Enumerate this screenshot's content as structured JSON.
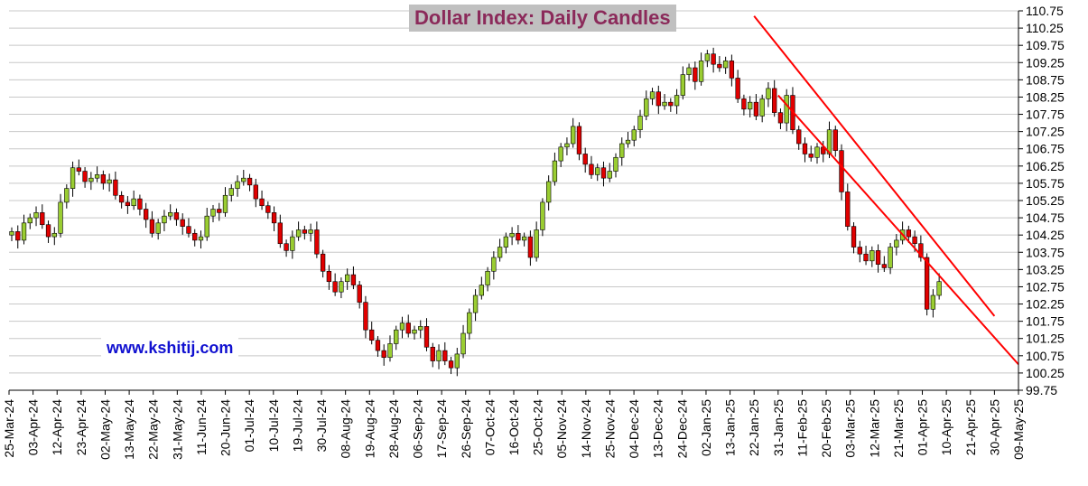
{
  "chart_data": {
    "type": "candlestick",
    "title": "Dollar Index: Daily Candles",
    "watermark": "www.kshitij.com",
    "ylim": [
      99.75,
      110.75
    ],
    "y_ticks": [
      "110.75",
      "110.25",
      "109.75",
      "109.25",
      "108.75",
      "108.25",
      "107.75",
      "107.25",
      "106.75",
      "106.25",
      "105.75",
      "105.25",
      "104.75",
      "104.25",
      "103.75",
      "103.25",
      "102.75",
      "102.25",
      "101.75",
      "101.25",
      "100.75",
      "100.25",
      "99.75"
    ],
    "x_labels": [
      "25-Mar-24",
      "03-Apr-24",
      "12-Apr-24",
      "23-Apr-24",
      "02-May-24",
      "13-May-24",
      "22-May-24",
      "31-May-24",
      "11-Jun-24",
      "20-Jun-24",
      "01-Jul-24",
      "10-Jul-24",
      "19-Jul-24",
      "30-Jul-24",
      "08-Aug-24",
      "19-Aug-24",
      "28-Aug-24",
      "06-Sep-24",
      "17-Sep-24",
      "26-Sep-24",
      "07-Oct-24",
      "16-Oct-24",
      "25-Oct-24",
      "05-Nov-24",
      "14-Nov-24",
      "25-Nov-24",
      "04-Dec-24",
      "13-Dec-24",
      "24-Dec-24",
      "02-Jan-25",
      "13-Jan-25",
      "22-Jan-25",
      "31-Jan-25",
      "11-Feb-25",
      "20-Feb-25",
      "03-Mar-25",
      "12-Mar-25",
      "21-Mar-25",
      "01-Apr-25",
      "10-Apr-25",
      "21-Apr-25",
      "30-Apr-25",
      "09-May-25"
    ],
    "close_path": [
      104.35,
      104.1,
      104.6,
      104.75,
      104.9,
      104.55,
      104.2,
      104.3,
      105.2,
      105.6,
      106.2,
      106.1,
      105.8,
      105.9,
      106.0,
      105.75,
      105.85,
      105.4,
      105.2,
      105.1,
      105.3,
      105.0,
      104.7,
      104.3,
      104.6,
      104.8,
      104.9,
      104.7,
      104.5,
      104.3,
      104.1,
      104.2,
      104.8,
      105.0,
      104.9,
      105.4,
      105.6,
      105.8,
      105.9,
      105.7,
      105.3,
      105.1,
      104.9,
      104.6,
      104.0,
      103.8,
      104.2,
      104.4,
      104.3,
      104.4,
      103.7,
      103.2,
      102.9,
      102.6,
      102.9,
      103.1,
      102.8,
      102.3,
      101.5,
      101.2,
      100.9,
      100.7,
      101.1,
      101.5,
      101.7,
      101.4,
      101.5,
      101.6,
      101.0,
      100.6,
      100.9,
      100.6,
      100.4,
      100.8,
      101.4,
      102.0,
      102.5,
      102.8,
      103.2,
      103.6,
      103.9,
      104.2,
      104.3,
      104.1,
      104.2,
      103.6,
      104.4,
      105.2,
      105.8,
      106.4,
      106.8,
      106.9,
      107.4,
      106.6,
      106.3,
      106.0,
      106.2,
      105.9,
      106.1,
      106.5,
      106.9,
      107.0,
      107.3,
      107.7,
      108.2,
      108.4,
      108.0,
      108.1,
      108.0,
      108.3,
      108.9,
      109.1,
      108.7,
      109.3,
      109.5,
      109.2,
      109.1,
      109.3,
      108.8,
      108.2,
      107.9,
      108.1,
      107.7,
      108.2,
      108.5,
      107.8,
      107.5,
      108.3,
      107.3,
      106.9,
      106.6,
      106.5,
      106.8,
      106.6,
      107.3,
      106.7,
      105.5,
      104.5,
      103.9,
      103.7,
      103.5,
      103.8,
      103.4,
      103.3,
      103.9,
      104.1,
      104.4,
      104.2,
      104.0,
      103.6,
      102.1,
      102.5,
      102.9
    ],
    "trendlines": [
      {
        "from": [
          "22-Jan-25",
          110.6
        ],
        "to": [
          "30-Apr-25",
          101.9
        ]
      },
      {
        "from": [
          "31-Jan-25",
          108.3
        ],
        "to": [
          "09-May-25",
          100.5
        ]
      }
    ],
    "colors": {
      "up": "#9acd32",
      "down": "#e00000",
      "wick": "#000000",
      "trendline": "#ff0000",
      "grid": "#c8c8c8",
      "title": "#8b2a5a",
      "watermark": "#1010d0"
    }
  }
}
